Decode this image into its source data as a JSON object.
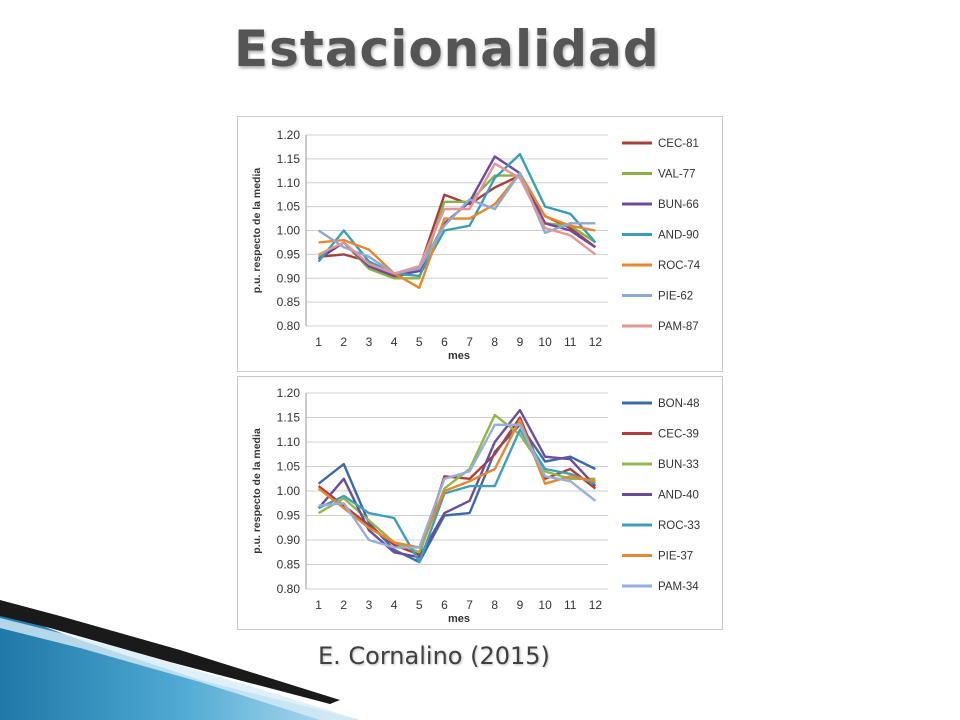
{
  "slide": {
    "title": "Estacionalidad",
    "citation": "E. Cornalino (2015)"
  },
  "chart_data": [
    {
      "type": "line",
      "title": "",
      "xlabel": "mes",
      "ylabel": "p.u. respecto de la media",
      "ylim": [
        0.8,
        1.2
      ],
      "yticks": [
        "0.80",
        "0.85",
        "0.90",
        "0.95",
        "1.00",
        "1.05",
        "1.10",
        "1.15",
        "1.20"
      ],
      "categories": [
        "1",
        "2",
        "3",
        "4",
        "5",
        "6",
        "7",
        "8",
        "9",
        "10",
        "11",
        "12"
      ],
      "grid": true,
      "legend_position": "right",
      "series": [
        {
          "name": "CEC-81",
          "color": "#a8403a",
          "values": [
            0.945,
            0.95,
            0.935,
            0.9,
            0.92,
            1.075,
            1.055,
            1.09,
            1.115,
            1.03,
            1.005,
            0.965
          ]
        },
        {
          "name": "VAL-77",
          "color": "#8ab143",
          "values": [
            0.945,
            0.975,
            0.92,
            0.9,
            0.9,
            1.06,
            1.06,
            1.115,
            1.115,
            1.015,
            1.01,
            0.975
          ]
        },
        {
          "name": "BUN-66",
          "color": "#6f4a9c",
          "values": [
            0.94,
            0.975,
            0.925,
            0.905,
            0.915,
            1.015,
            1.06,
            1.155,
            1.12,
            1.015,
            1.0,
            0.965
          ]
        },
        {
          "name": "AND-90",
          "color": "#3a9fb6",
          "values": [
            0.935,
            1.0,
            0.935,
            0.91,
            0.905,
            1.0,
            1.01,
            1.11,
            1.16,
            1.05,
            1.035,
            0.975
          ]
        },
        {
          "name": "ROC-74",
          "color": "#e9872e",
          "values": [
            0.975,
            0.98,
            0.96,
            0.91,
            0.88,
            1.025,
            1.025,
            1.055,
            1.12,
            1.03,
            1.01,
            1.0
          ]
        },
        {
          "name": "PIE-62",
          "color": "#8fa9d6",
          "values": [
            1.0,
            0.965,
            0.945,
            0.91,
            0.92,
            1.01,
            1.065,
            1.045,
            1.12,
            0.995,
            1.015,
            1.015
          ]
        },
        {
          "name": "PAM-87",
          "color": "#e59597",
          "values": [
            0.95,
            0.975,
            0.93,
            0.91,
            0.925,
            1.045,
            1.045,
            1.14,
            1.11,
            1.005,
            0.99,
            0.95
          ]
        }
      ]
    },
    {
      "type": "line",
      "title": "",
      "xlabel": "mes",
      "ylabel": "p.u. respecto de la media",
      "ylim": [
        0.8,
        1.2
      ],
      "yticks": [
        "0.80",
        "0.85",
        "0.90",
        "0.95",
        "1.00",
        "1.05",
        "1.10",
        "1.15",
        "1.20"
      ],
      "categories": [
        "1",
        "2",
        "3",
        "4",
        "5",
        "6",
        "7",
        "8",
        "9",
        "10",
        "11",
        "12"
      ],
      "grid": true,
      "legend_position": "right",
      "series": [
        {
          "name": "BON-48",
          "color": "#3d6ba8",
          "values": [
            1.015,
            1.055,
            0.935,
            0.88,
            0.855,
            0.95,
            0.955,
            1.08,
            1.135,
            1.06,
            1.07,
            1.045
          ]
        },
        {
          "name": "CEC-39",
          "color": "#b23d3a",
          "values": [
            1.01,
            0.97,
            0.93,
            0.89,
            0.87,
            1.03,
            1.025,
            1.075,
            1.15,
            1.025,
            1.045,
            1.005
          ]
        },
        {
          "name": "BUN-33",
          "color": "#92b84d",
          "values": [
            0.955,
            0.985,
            0.94,
            0.895,
            0.875,
            1.005,
            1.045,
            1.155,
            1.115,
            1.04,
            1.025,
            1.025
          ]
        },
        {
          "name": "AND-40",
          "color": "#6b4e9a",
          "values": [
            0.965,
            1.025,
            0.92,
            0.875,
            0.865,
            0.955,
            0.98,
            1.1,
            1.165,
            1.07,
            1.065,
            1.01
          ]
        },
        {
          "name": "ROC-33",
          "color": "#3fa0b8",
          "values": [
            0.965,
            0.99,
            0.955,
            0.945,
            0.855,
            0.995,
            1.01,
            1.01,
            1.125,
            1.045,
            1.035,
            1.015
          ]
        },
        {
          "name": "PIE-37",
          "color": "#e7872f",
          "values": [
            1.005,
            0.965,
            0.925,
            0.895,
            0.885,
            1.0,
            1.02,
            1.045,
            1.145,
            1.015,
            1.03,
            1.02
          ]
        },
        {
          "name": "PAM-34",
          "color": "#95aedb",
          "values": [
            0.97,
            0.975,
            0.9,
            0.885,
            0.885,
            1.025,
            1.04,
            1.135,
            1.135,
            1.03,
            1.02,
            0.98
          ]
        }
      ]
    }
  ]
}
